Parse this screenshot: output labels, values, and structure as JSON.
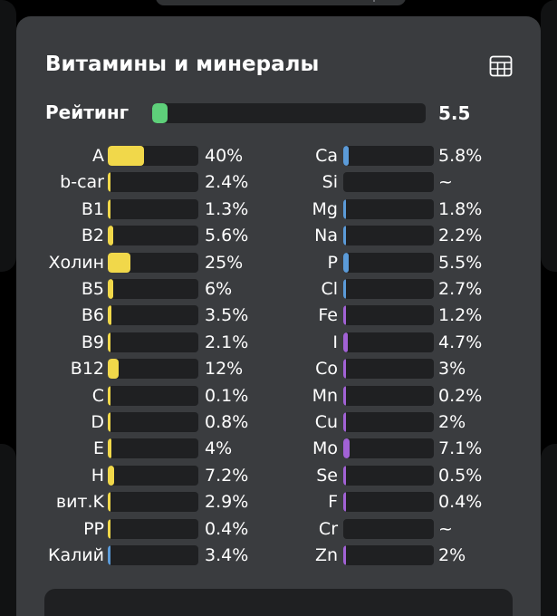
{
  "section": {
    "title": "Витамины и минералы",
    "table_icon": "table-grid-icon"
  },
  "rating": {
    "label": "Рейтинг",
    "value": "5.5",
    "fraction": 0.055,
    "color": "#5ed07a"
  },
  "colors": {
    "vitamin": "#f1d84a",
    "mineral_blue": "#5b9bd9",
    "mineral_purple": "#a262d6",
    "card": "#3a3c3f",
    "track": "#1f2022"
  },
  "vitamins": [
    {
      "name": "A",
      "pct": "40%",
      "value": 40,
      "color": "#f1d84a"
    },
    {
      "name": "b-car",
      "pct": "2.4%",
      "value": 2.4,
      "color": "#f1d84a"
    },
    {
      "name": "B1",
      "pct": "1.3%",
      "value": 1.3,
      "color": "#f1d84a"
    },
    {
      "name": "B2",
      "pct": "5.6%",
      "value": 5.6,
      "color": "#f1d84a"
    },
    {
      "name": "Холин",
      "pct": "25%",
      "value": 25,
      "color": "#f1d84a"
    },
    {
      "name": "B5",
      "pct": "6%",
      "value": 6,
      "color": "#f1d84a"
    },
    {
      "name": "B6",
      "pct": "3.5%",
      "value": 3.5,
      "color": "#f1d84a"
    },
    {
      "name": "B9",
      "pct": "2.1%",
      "value": 2.1,
      "color": "#f1d84a"
    },
    {
      "name": "B12",
      "pct": "12%",
      "value": 12,
      "color": "#f1d84a"
    },
    {
      "name": "C",
      "pct": "0.1%",
      "value": 0.1,
      "color": "#f1d84a"
    },
    {
      "name": "D",
      "pct": "0.8%",
      "value": 0.8,
      "color": "#f1d84a"
    },
    {
      "name": "E",
      "pct": "4%",
      "value": 4,
      "color": "#f1d84a"
    },
    {
      "name": "H",
      "pct": "7.2%",
      "value": 7.2,
      "color": "#f1d84a"
    },
    {
      "name": "вит.K",
      "pct": "2.9%",
      "value": 2.9,
      "color": "#f1d84a"
    },
    {
      "name": "PP",
      "pct": "0.4%",
      "value": 0.4,
      "color": "#f1d84a"
    },
    {
      "name": "Калий",
      "pct": "3.4%",
      "value": 3.4,
      "color": "#5b9bd9"
    }
  ],
  "minerals": [
    {
      "name": "Ca",
      "pct": "5.8%",
      "value": 5.8,
      "color": "#5b9bd9"
    },
    {
      "name": "Si",
      "pct": "~",
      "value": 0,
      "color": "#5b9bd9"
    },
    {
      "name": "Mg",
      "pct": "1.8%",
      "value": 1.8,
      "color": "#5b9bd9"
    },
    {
      "name": "Na",
      "pct": "2.2%",
      "value": 2.2,
      "color": "#5b9bd9"
    },
    {
      "name": "P",
      "pct": "5.5%",
      "value": 5.5,
      "color": "#5b9bd9"
    },
    {
      "name": "Cl",
      "pct": "2.7%",
      "value": 2.7,
      "color": "#5b9bd9"
    },
    {
      "name": "Fe",
      "pct": "1.2%",
      "value": 1.2,
      "color": "#a262d6"
    },
    {
      "name": "I",
      "pct": "4.7%",
      "value": 4.7,
      "color": "#a262d6"
    },
    {
      "name": "Co",
      "pct": "3%",
      "value": 3,
      "color": "#a262d6"
    },
    {
      "name": "Mn",
      "pct": "0.2%",
      "value": 0.2,
      "color": "#a262d6"
    },
    {
      "name": "Cu",
      "pct": "2%",
      "value": 2,
      "color": "#a262d6"
    },
    {
      "name": "Mo",
      "pct": "7.1%",
      "value": 7.1,
      "color": "#a262d6"
    },
    {
      "name": "Se",
      "pct": "0.5%",
      "value": 0.5,
      "color": "#a262d6"
    },
    {
      "name": "F",
      "pct": "0.4%",
      "value": 0.4,
      "color": "#a262d6"
    },
    {
      "name": "Cr",
      "pct": "~",
      "value": 0,
      "color": "#a262d6"
    },
    {
      "name": "Zn",
      "pct": "2%",
      "value": 2,
      "color": "#a262d6"
    }
  ]
}
